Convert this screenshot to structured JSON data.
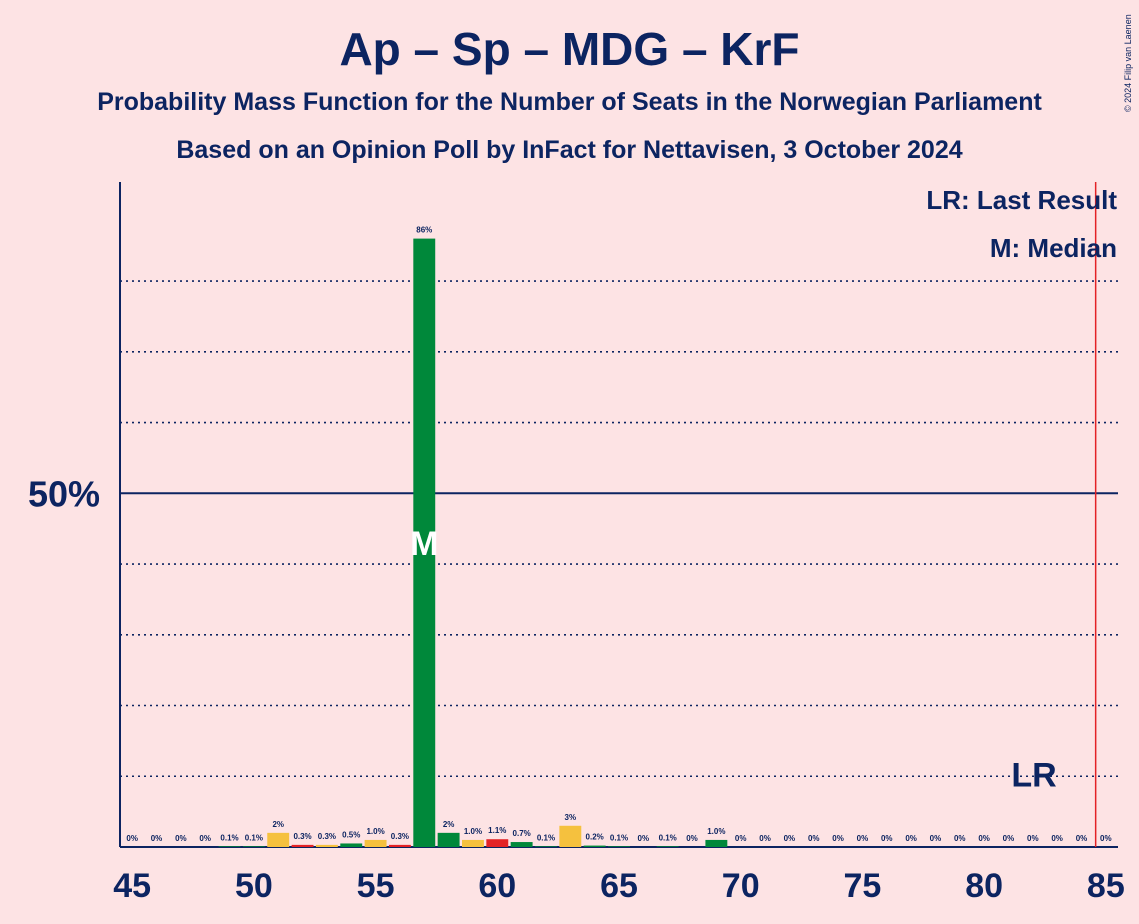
{
  "header": {
    "title": "Ap – Sp – MDG – KrF",
    "subtitle": "Probability Mass Function for the Number of Seats in the Norwegian Parliament",
    "subtitle2": "Based on an Opinion Poll by InFact for Nettavisen, 3 October 2024",
    "copyright": "© 2024 Filip van Laenen"
  },
  "legend": {
    "lr": "LR: Last Result",
    "m": "M: Median"
  },
  "colors": {
    "background": "#fde3e4",
    "axis": "#0c2461",
    "green": "#00883a",
    "yellow": "#f5c13e",
    "red": "#e32226",
    "last_result_line": "#e32226"
  },
  "chart_data": {
    "type": "bar",
    "x": [
      45,
      46,
      47,
      48,
      49,
      50,
      51,
      52,
      53,
      54,
      55,
      56,
      57,
      58,
      59,
      60,
      61,
      62,
      63,
      64,
      65,
      66,
      67,
      68,
      69,
      70,
      71,
      72,
      73,
      74,
      75,
      76,
      77,
      78,
      79,
      80,
      81,
      82,
      83,
      84,
      85
    ],
    "values": [
      0,
      0,
      0,
      0,
      0.1,
      0.1,
      2,
      0.3,
      0.3,
      0.5,
      1.0,
      0.3,
      86,
      2,
      1.0,
      1.1,
      0.7,
      0.1,
      3,
      0.2,
      0.1,
      0,
      0.1,
      0,
      1.0,
      0,
      0,
      0,
      0,
      0,
      0,
      0,
      0,
      0,
      0,
      0,
      0,
      0,
      0,
      0,
      0
    ],
    "labels": [
      "0%",
      "0%",
      "0%",
      "0%",
      "0.1%",
      "0.1%",
      "2%",
      "0.3%",
      "0.3%",
      "0.5%",
      "1.0%",
      "0.3%",
      "86%",
      "2%",
      "1.0%",
      "1.1%",
      "0.7%",
      "0.1%",
      "3%",
      "0.2%",
      "0.1%",
      "0%",
      "0.1%",
      "0%",
      "1.0%",
      "0%",
      "0%",
      "0%",
      "0%",
      "0%",
      "0%",
      "0%",
      "0%",
      "0%",
      "0%",
      "0%",
      "0%",
      "0%",
      "0%",
      "0%",
      "0%"
    ],
    "bar_colors": [
      "green",
      "green",
      "green",
      "green",
      "green",
      "green",
      "yellow",
      "red",
      "yellow",
      "green",
      "yellow",
      "red",
      "green",
      "green",
      "yellow",
      "red",
      "green",
      "green",
      "yellow",
      "green",
      "green",
      "green",
      "green",
      "green",
      "green",
      "green",
      "green",
      "green",
      "green",
      "green",
      "green",
      "green",
      "green",
      "green",
      "green",
      "green",
      "green",
      "green",
      "green",
      "green",
      "green"
    ],
    "x_ticks": [
      45,
      50,
      55,
      60,
      65,
      70,
      75,
      80,
      85
    ],
    "y_tick_label": "50%",
    "y_major": 50,
    "y_gridlines": [
      10,
      20,
      30,
      40,
      60,
      70,
      80
    ],
    "ylim": [
      0,
      94
    ],
    "xlim": [
      44.5,
      85.5
    ],
    "median": 57,
    "median_marker": "M",
    "last_result": 85,
    "last_result_marker": "LR"
  }
}
